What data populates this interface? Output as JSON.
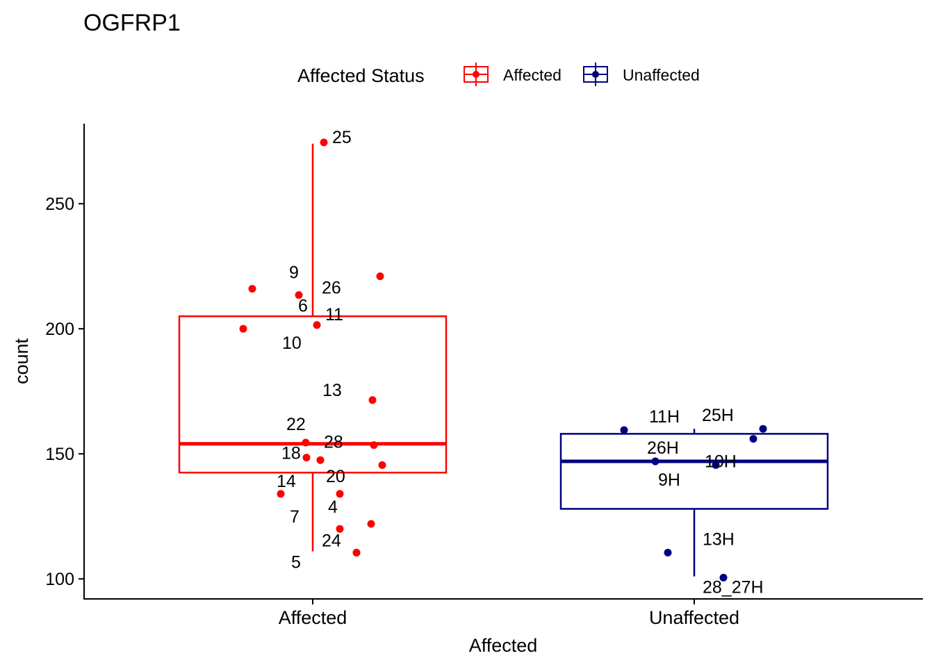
{
  "chart_data": {
    "type": "boxplot",
    "title": "OGFRP1",
    "xlabel": "Affected",
    "ylabel": "count",
    "ylim": [
      92,
      282
    ],
    "yticks": [
      100,
      150,
      200,
      250
    ],
    "categories": [
      "Affected",
      "Unaffected"
    ],
    "legend": {
      "title": "Affected Status",
      "position": "top",
      "entries": [
        "Affected",
        "Unaffected"
      ]
    },
    "grid": false,
    "series": [
      {
        "name": "Affected",
        "color": "#ff0000",
        "box": {
          "lower_whisker": 111,
          "q1": 142.5,
          "median": 154,
          "q3": 205,
          "upper_whisker": 274
        },
        "points": [
          {
            "label": "25",
            "y": 274.5
          },
          {
            "label": "9",
            "y": 213.5
          },
          {
            "label": "26",
            "y": 221
          },
          {
            "label": "6",
            "y": 216
          },
          {
            "label": "11",
            "y": 201.5
          },
          {
            "label": "10",
            "y": 200
          },
          {
            "label": "13",
            "y": 171.5
          },
          {
            "label": "22",
            "y": 154.5
          },
          {
            "label": "28",
            "y": 153.5
          },
          {
            "label": "18",
            "y": 148.5
          },
          {
            "label": "",
            "y": 147.5
          },
          {
            "label": "",
            "y": 145.5
          },
          {
            "label": "14",
            "y": 134
          },
          {
            "label": "20",
            "y": 134
          },
          {
            "label": "4",
            "y": 122
          },
          {
            "label": "7",
            "y": 120
          },
          {
            "label": "24",
            "y": 110.5
          },
          {
            "label": "5",
            "y": 110.5
          }
        ]
      },
      {
        "name": "Unaffected",
        "color": "#000080",
        "box": {
          "lower_whisker": 101,
          "q1": 128,
          "median": 147,
          "q3": 158,
          "upper_whisker": 160
        },
        "points": [
          {
            "label": "11H",
            "y": 159.5
          },
          {
            "label": "25H",
            "y": 160
          },
          {
            "label": "",
            "y": 156
          },
          {
            "label": "26H",
            "y": 147
          },
          {
            "label": "10H",
            "y": 145.5
          },
          {
            "label": "9H",
            "y": 147
          },
          {
            "label": "13H",
            "y": 110.5
          },
          {
            "label": "28_27H",
            "y": 100.5
          }
        ]
      }
    ]
  }
}
